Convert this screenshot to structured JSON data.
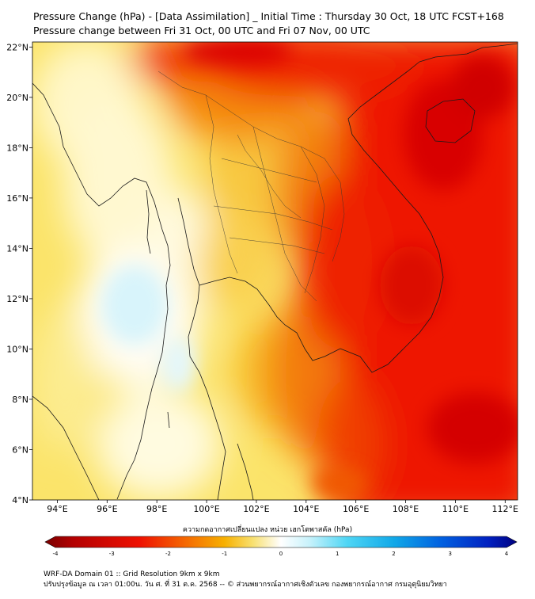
{
  "title": {
    "line1": "Pressure Change (hPa) - [Data Assimilation] _ Initial Time : Thursday 30 Oct, 18 UTC FCST+168",
    "line2": "Pressure change between Fri 31 Oct, 00 UTC and Fri 07 Nov, 00 UTC"
  },
  "map": {
    "lon_range": [
      93,
      112.5
    ],
    "lat_range": [
      4,
      22.2
    ],
    "lon_ticks": [
      "94°E",
      "96°E",
      "98°E",
      "100°E",
      "102°E",
      "104°E",
      "106°E",
      "108°E",
      "110°E",
      "112°E"
    ],
    "lat_ticks": [
      "4°N",
      "6°N",
      "8°N",
      "10°N",
      "12°N",
      "14°N",
      "16°N",
      "18°N",
      "20°N",
      "22°N"
    ]
  },
  "colorbar": {
    "title": "ความกดอากาศเปลี่ยนแปลง หน่วย เฮกโตพาสคัล (hPa)",
    "ticks": [
      "-4",
      "-3",
      "-2",
      "-1",
      "0",
      "1",
      "2",
      "3",
      "4"
    ],
    "colors": {
      "min": "#7a0000",
      "red": "#e00000",
      "orange": "#f57a00",
      "yellow": "#f7d21a",
      "pale_yellow": "#fff4b0",
      "white": "#ffffff",
      "cyan": "#4fd6f5",
      "blue": "#0040d8",
      "max": "#000080"
    }
  },
  "footer": {
    "line1": "WRF-DA Domain 01 :: Grid Resolution 9km x 9km",
    "line2": "ปรับปรุงข้อมูล ณ เวลา 01:00น. วัน ศ. ที่ 31 ต.ค. 2568 -- © ส่วนพยากรณ์อากาศเชิงตัวเลข กองพยากรณ์อากาศ กรมอุตุนิยมวิทยา"
  }
}
